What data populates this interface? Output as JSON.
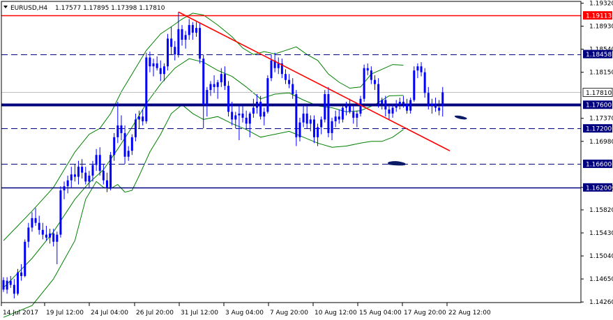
{
  "header": {
    "symbol_timeframe": "EURUSD,H4",
    "ohlc": "1.17577 1.17895 1.17398 1.17810"
  },
  "chart_data": {
    "type": "candlestick",
    "symbol": "EURUSD",
    "timeframe": "H4",
    "ylim": [
      1.1425,
      1.1935
    ],
    "y_ticks": [
      "1.19320",
      "1.18930",
      "1.18540",
      "1.18150",
      "1.17370",
      "1.16980",
      "1.16200",
      "1.15820",
      "1.15430",
      "1.15040",
      "1.14650",
      "1.14260"
    ],
    "x_ticks": [
      "14 Jul 2017",
      "19 Jul 12:00",
      "24 Jul 04:00",
      "26 Jul 20:00",
      "31 Jul 12:00",
      "3 Aug 04:00",
      "7 Aug 20:00",
      "10 Aug 12:00",
      "15 Aug 04:00",
      "17 Aug 20:00",
      "22 Aug 12:00"
    ],
    "horizontal_levels": [
      {
        "price": 1.19113,
        "label": "1.19113",
        "style": "solid",
        "color": "#ff0000"
      },
      {
        "price": 1.18458,
        "label": "1.18458",
        "style": "dashed",
        "color": "#00007f"
      },
      {
        "price": 1.1781,
        "label": "1.17810",
        "style": "solid-thin",
        "color": "#c0c0c0"
      },
      {
        "price": 1.176,
        "label": "1.17600",
        "style": "thick",
        "color": "#00007f"
      },
      {
        "price": 1.172,
        "label": "1.17200",
        "style": "dashed",
        "color": "#00007f"
      },
      {
        "price": 1.166,
        "label": "1.16600",
        "style": "dashed",
        "color": "#00007f"
      },
      {
        "price": 1.162,
        "label": "1.16200",
        "style": "solid",
        "color": "#00007f"
      }
    ],
    "trendline": {
      "from": {
        "bar": 49,
        "price": 1.1917
      },
      "to": {
        "bar": 125,
        "price": 1.1682
      },
      "color": "#ff0000"
    },
    "bollinger_color": "#008000",
    "candle_color": "#0000ff",
    "candles": [
      [
        1.1463,
        1.1468,
        1.1443,
        1.1447
      ],
      [
        1.1447,
        1.1468,
        1.144,
        1.1462
      ],
      [
        1.1462,
        1.147,
        1.145,
        1.1455
      ],
      [
        1.1455,
        1.1465,
        1.1432,
        1.144
      ],
      [
        1.144,
        1.1482,
        1.1437,
        1.1476
      ],
      [
        1.1476,
        1.149,
        1.1462,
        1.147
      ],
      [
        1.147,
        1.1532,
        1.1468,
        1.1528
      ],
      [
        1.1528,
        1.156,
        1.1518,
        1.1552
      ],
      [
        1.1552,
        1.1578,
        1.1545,
        1.1568
      ],
      [
        1.1568,
        1.1585,
        1.1555,
        1.156
      ],
      [
        1.156,
        1.1572,
        1.154,
        1.1548
      ],
      [
        1.1548,
        1.156,
        1.1532,
        1.154
      ],
      [
        1.154,
        1.1555,
        1.153,
        1.1535
      ],
      [
        1.1535,
        1.155,
        1.1525,
        1.1542
      ],
      [
        1.1542,
        1.155,
        1.152,
        1.1528
      ],
      [
        1.1528,
        1.1545,
        1.149,
        1.154
      ],
      [
        1.154,
        1.1622,
        1.1535,
        1.1615
      ],
      [
        1.1615,
        1.163,
        1.16,
        1.1622
      ],
      [
        1.1622,
        1.164,
        1.161,
        1.1632
      ],
      [
        1.1632,
        1.1655,
        1.162,
        1.1642
      ],
      [
        1.1642,
        1.166,
        1.163,
        1.1638
      ],
      [
        1.1638,
        1.1665,
        1.1625,
        1.1655
      ],
      [
        1.1655,
        1.1668,
        1.1635,
        1.1645
      ],
      [
        1.1645,
        1.1655,
        1.1625,
        1.163
      ],
      [
        1.163,
        1.1648,
        1.162,
        1.164
      ],
      [
        1.164,
        1.1665,
        1.163,
        1.1658
      ],
      [
        1.1658,
        1.1685,
        1.1648,
        1.1675
      ],
      [
        1.1675,
        1.1688,
        1.164,
        1.1648
      ],
      [
        1.1648,
        1.166,
        1.1625,
        1.1632
      ],
      [
        1.1632,
        1.1645,
        1.1612,
        1.162
      ],
      [
        1.162,
        1.168,
        1.1615,
        1.1675
      ],
      [
        1.1675,
        1.1712,
        1.1665,
        1.1705
      ],
      [
        1.1705,
        1.1765,
        1.1695,
        1.1725
      ],
      [
        1.1725,
        1.1742,
        1.17,
        1.1712
      ],
      [
        1.1712,
        1.1725,
        1.166,
        1.1672
      ],
      [
        1.1672,
        1.169,
        1.1665,
        1.1682
      ],
      [
        1.1682,
        1.171,
        1.1675,
        1.1705
      ],
      [
        1.1705,
        1.1745,
        1.1698,
        1.1735
      ],
      [
        1.1735,
        1.175,
        1.172,
        1.174
      ],
      [
        1.174,
        1.1752,
        1.1725,
        1.1732
      ],
      [
        1.1732,
        1.1848,
        1.1728,
        1.184
      ],
      [
        1.184,
        1.185,
        1.1815,
        1.1825
      ],
      [
        1.1825,
        1.1838,
        1.1808,
        1.183
      ],
      [
        1.183,
        1.1842,
        1.1818,
        1.1822
      ],
      [
        1.1822,
        1.1835,
        1.18,
        1.1812
      ],
      [
        1.1812,
        1.183,
        1.18,
        1.1825
      ],
      [
        1.1825,
        1.188,
        1.1818,
        1.1872
      ],
      [
        1.1872,
        1.1892,
        1.1845,
        1.1858
      ],
      [
        1.1858,
        1.1868,
        1.1835,
        1.1845
      ],
      [
        1.1845,
        1.1917,
        1.184,
        1.1888
      ],
      [
        1.1888,
        1.1895,
        1.186,
        1.187
      ],
      [
        1.187,
        1.1885,
        1.1855,
        1.1878
      ],
      [
        1.1878,
        1.1905,
        1.187,
        1.1895
      ],
      [
        1.1895,
        1.19,
        1.187,
        1.1882
      ],
      [
        1.1882,
        1.19,
        1.1875,
        1.189
      ],
      [
        1.189,
        1.1898,
        1.183,
        1.1838
      ],
      [
        1.1838,
        1.1845,
        1.172,
        1.176
      ],
      [
        1.176,
        1.179,
        1.174,
        1.1785
      ],
      [
        1.1785,
        1.18,
        1.1775,
        1.1795
      ],
      [
        1.1795,
        1.181,
        1.178,
        1.179
      ],
      [
        1.179,
        1.1802,
        1.177,
        1.1798
      ],
      [
        1.1798,
        1.1822,
        1.179,
        1.1812
      ],
      [
        1.1812,
        1.1825,
        1.1785,
        1.1792
      ],
      [
        1.1792,
        1.18,
        1.174,
        1.1748
      ],
      [
        1.1748,
        1.1765,
        1.1725,
        1.1735
      ],
      [
        1.1735,
        1.1748,
        1.172,
        1.1742
      ],
      [
        1.1742,
        1.176,
        1.17,
        1.1745
      ],
      [
        1.1745,
        1.1758,
        1.173,
        1.1738
      ],
      [
        1.1738,
        1.175,
        1.1718,
        1.1728
      ],
      [
        1.1728,
        1.1748,
        1.1705,
        1.1745
      ],
      [
        1.1745,
        1.177,
        1.1738,
        1.1755
      ],
      [
        1.1755,
        1.1778,
        1.1745,
        1.1765
      ],
      [
        1.1765,
        1.1775,
        1.1735,
        1.174
      ],
      [
        1.174,
        1.1755,
        1.1725,
        1.1748
      ],
      [
        1.1748,
        1.181,
        1.1745,
        1.1805
      ],
      [
        1.1805,
        1.1845,
        1.18,
        1.1835
      ],
      [
        1.1835,
        1.1848,
        1.1815,
        1.1822
      ],
      [
        1.1822,
        1.184,
        1.1812,
        1.183
      ],
      [
        1.183,
        1.1838,
        1.1805,
        1.1812
      ],
      [
        1.1812,
        1.182,
        1.1795,
        1.1802
      ],
      [
        1.1802,
        1.1812,
        1.1788,
        1.1795
      ],
      [
        1.1795,
        1.1805,
        1.177,
        1.1778
      ],
      [
        1.1778,
        1.1785,
        1.169,
        1.1705
      ],
      [
        1.1705,
        1.1738,
        1.1698,
        1.173
      ],
      [
        1.173,
        1.176,
        1.1722,
        1.1745
      ],
      [
        1.1745,
        1.1758,
        1.172,
        1.1728
      ],
      [
        1.1728,
        1.1742,
        1.1715,
        1.1735
      ],
      [
        1.1735,
        1.1742,
        1.1695,
        1.1705
      ],
      [
        1.1705,
        1.1728,
        1.169,
        1.1722
      ],
      [
        1.1722,
        1.174,
        1.171,
        1.1735
      ],
      [
        1.1735,
        1.1785,
        1.173,
        1.1778
      ],
      [
        1.1778,
        1.179,
        1.1705,
        1.1712
      ],
      [
        1.1712,
        1.1738,
        1.17,
        1.1732
      ],
      [
        1.1732,
        1.175,
        1.1722,
        1.174
      ],
      [
        1.174,
        1.1752,
        1.1728,
        1.1735
      ],
      [
        1.1735,
        1.176,
        1.173,
        1.1755
      ],
      [
        1.1755,
        1.1765,
        1.1742,
        1.1758
      ],
      [
        1.1758,
        1.177,
        1.1745,
        1.1748
      ],
      [
        1.1748,
        1.1758,
        1.1728,
        1.1738
      ],
      [
        1.1738,
        1.175,
        1.1722,
        1.1745
      ],
      [
        1.1745,
        1.1775,
        1.174,
        1.177
      ],
      [
        1.177,
        1.1828,
        1.1765,
        1.1822
      ],
      [
        1.1822,
        1.183,
        1.181,
        1.1818
      ],
      [
        1.1818,
        1.1825,
        1.1795,
        1.1802
      ],
      [
        1.1802,
        1.181,
        1.1785,
        1.1795
      ],
      [
        1.1795,
        1.1805,
        1.1755,
        1.1762
      ],
      [
        1.1762,
        1.1772,
        1.1752,
        1.1768
      ],
      [
        1.1768,
        1.1775,
        1.174,
        1.1752
      ],
      [
        1.1752,
        1.176,
        1.1735,
        1.1745
      ],
      [
        1.1745,
        1.1762,
        1.1738,
        1.1755
      ],
      [
        1.1755,
        1.1768,
        1.1748,
        1.176
      ],
      [
        1.176,
        1.1772,
        1.1752,
        1.1765
      ],
      [
        1.1765,
        1.1775,
        1.1755,
        1.1762
      ],
      [
        1.1762,
        1.177,
        1.1745,
        1.175
      ],
      [
        1.175,
        1.1772,
        1.1745,
        1.1768
      ],
      [
        1.1768,
        1.1825,
        1.1765,
        1.1818
      ],
      [
        1.1818,
        1.183,
        1.1805,
        1.1825
      ],
      [
        1.1825,
        1.1832,
        1.1808,
        1.1815
      ],
      [
        1.1815,
        1.1822,
        1.1772,
        1.178
      ],
      [
        1.178,
        1.179,
        1.1752,
        1.1758
      ],
      [
        1.1758,
        1.177,
        1.1745,
        1.1762
      ],
      [
        1.1762,
        1.1772,
        1.1748,
        1.1755
      ],
      [
        1.1755,
        1.1768,
        1.1742,
        1.175
      ],
      [
        1.1758,
        1.179,
        1.174,
        1.1781
      ]
    ],
    "bollinger": {
      "upper": [
        [
          0,
          1.153
        ],
        [
          8,
          1.158
        ],
        [
          14,
          1.162
        ],
        [
          20,
          1.168
        ],
        [
          24,
          1.171
        ],
        [
          27,
          1.172
        ],
        [
          30,
          1.1745
        ],
        [
          33,
          1.1782
        ],
        [
          36,
          1.1812
        ],
        [
          40,
          1.1852
        ],
        [
          44,
          1.188
        ],
        [
          47,
          1.1892
        ],
        [
          50,
          1.1905
        ],
        [
          53,
          1.1915
        ],
        [
          56,
          1.1912
        ],
        [
          60,
          1.1895
        ],
        [
          64,
          1.1875
        ],
        [
          67,
          1.1856
        ],
        [
          70,
          1.1845
        ],
        [
          73,
          1.185
        ],
        [
          76,
          1.1846
        ],
        [
          79,
          1.1852
        ],
        [
          82,
          1.1858
        ],
        [
          85,
          1.1845
        ],
        [
          88,
          1.1835
        ],
        [
          91,
          1.1812
        ],
        [
          94,
          1.1798
        ],
        [
          97,
          1.1788
        ],
        [
          100,
          1.179
        ],
        [
          103,
          1.1812
        ],
        [
          106,
          1.182
        ],
        [
          109,
          1.1828
        ],
        [
          112,
          1.1827
        ]
      ],
      "middle": [
        [
          0,
          1.145
        ],
        [
          8,
          1.15
        ],
        [
          14,
          1.1545
        ],
        [
          20,
          1.16
        ],
        [
          24,
          1.1628
        ],
        [
          28,
          1.165
        ],
        [
          32,
          1.1685
        ],
        [
          36,
          1.1722
        ],
        [
          40,
          1.1762
        ],
        [
          44,
          1.1795
        ],
        [
          48,
          1.1822
        ],
        [
          52,
          1.1838
        ],
        [
          56,
          1.1832
        ],
        [
          60,
          1.1818
        ],
        [
          64,
          1.1808
        ],
        [
          68,
          1.179
        ],
        [
          72,
          1.177
        ],
        [
          76,
          1.1778
        ],
        [
          80,
          1.178
        ],
        [
          84,
          1.1768
        ],
        [
          88,
          1.1758
        ],
        [
          92,
          1.1755
        ],
        [
          96,
          1.1748
        ],
        [
          100,
          1.175
        ],
        [
          104,
          1.176
        ],
        [
          108,
          1.1775
        ],
        [
          112,
          1.1776
        ]
      ],
      "lower": [
        [
          0,
          1.14
        ],
        [
          8,
          1.142
        ],
        [
          14,
          1.1465
        ],
        [
          20,
          1.153
        ],
        [
          23,
          1.16
        ],
        [
          26,
          1.163
        ],
        [
          28,
          1.162
        ],
        [
          30,
          1.1618
        ],
        [
          32,
          1.1625
        ],
        [
          34,
          1.1612
        ],
        [
          36,
          1.1615
        ],
        [
          38,
          1.164
        ],
        [
          41,
          1.168
        ],
        [
          44,
          1.171
        ],
        [
          47,
          1.1745
        ],
        [
          50,
          1.176
        ],
        [
          53,
          1.1745
        ],
        [
          56,
          1.1735
        ],
        [
          60,
          1.174
        ],
        [
          64,
          1.1728
        ],
        [
          68,
          1.1718
        ],
        [
          72,
          1.1705
        ],
        [
          76,
          1.171
        ],
        [
          80,
          1.1715
        ],
        [
          84,
          1.1705
        ],
        [
          88,
          1.1695
        ],
        [
          92,
          1.1688
        ],
        [
          96,
          1.169
        ],
        [
          100,
          1.1695
        ],
        [
          103,
          1.1698
        ],
        [
          106,
          1.1698
        ],
        [
          109,
          1.1705
        ],
        [
          112,
          1.1718
        ]
      ]
    }
  }
}
